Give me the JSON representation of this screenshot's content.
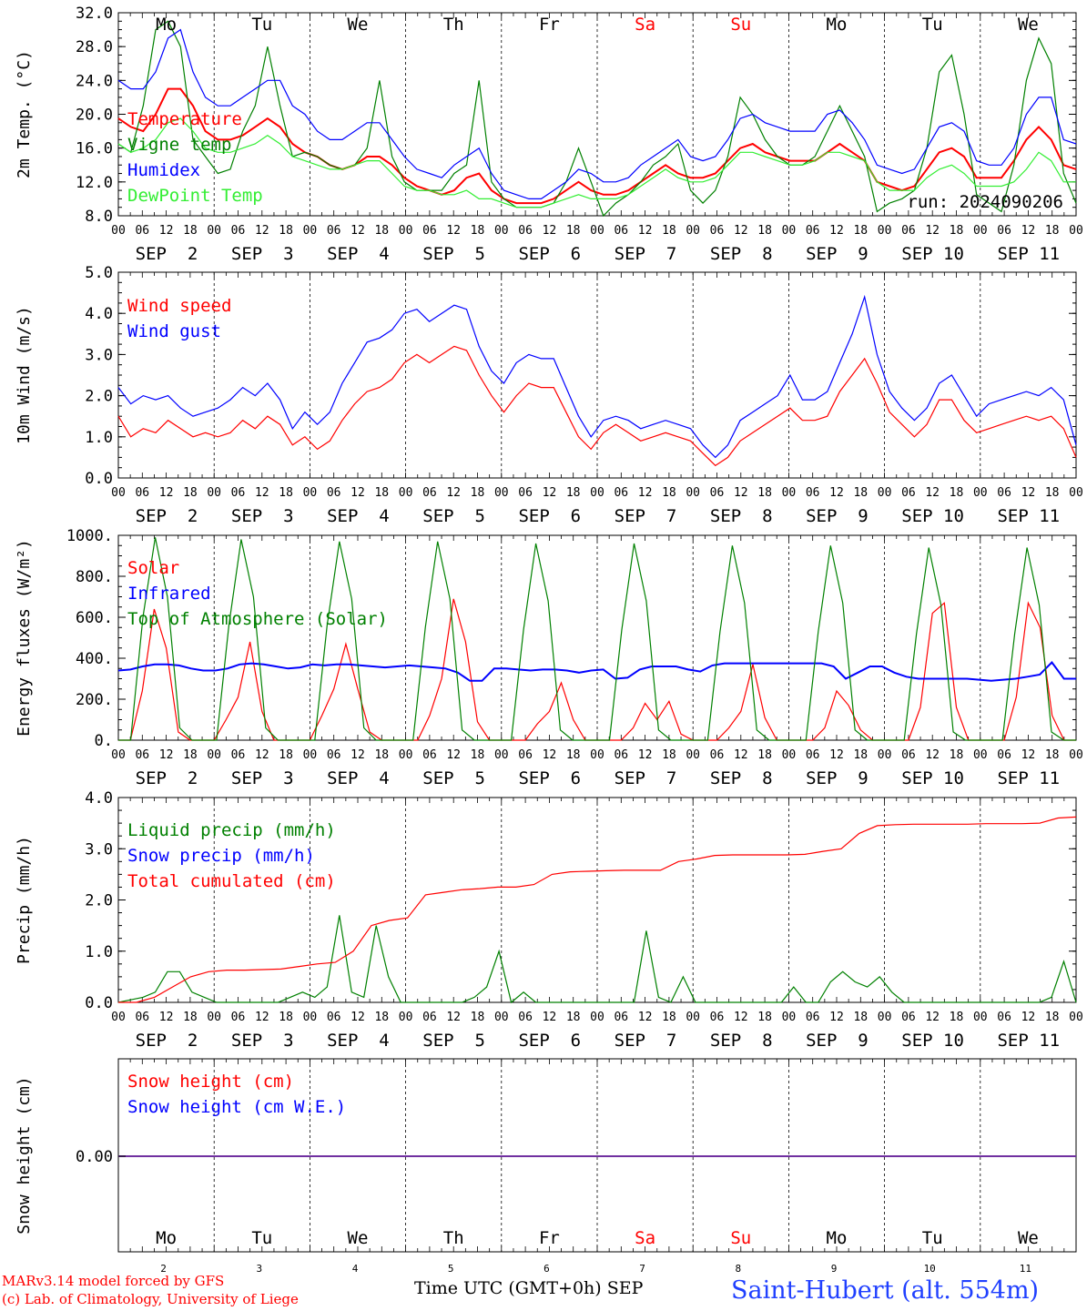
{
  "run_label": "run: 2024090206",
  "days": [
    "Mo",
    "Tu",
    "We",
    "Th",
    "Fr",
    "Sa",
    "Su",
    "Mo",
    "Tu",
    "We"
  ],
  "weekend_days": [
    "Sa",
    "Su"
  ],
  "date_labels": [
    "SEP  2",
    "SEP  3",
    "SEP  4",
    "SEP  5",
    "SEP  6",
    "SEP  7",
    "SEP  8",
    "SEP  9",
    "SEP 10",
    "SEP 11"
  ],
  "hour_ticks": [
    "00",
    "06",
    "12",
    "18"
  ],
  "bottom_day_numbers": [
    "2",
    "3",
    "4",
    "5",
    "6",
    "7",
    "8",
    "9",
    "10",
    "11"
  ],
  "x_axis_title": "Time UTC (GMT+0h)",
  "x_month": "SEP",
  "credit_line1": "MARv3.14 model forced by GFS",
  "credit_line2": "(c) Lab. of Climatology, University of Liege",
  "station": "Saint-Hubert (alt. 554m)",
  "colors": {
    "red": "#ff0000",
    "green": "#008000",
    "blue": "#0000ff",
    "lightgreen": "#33ee33",
    "purple": "#7030a0"
  },
  "chart_data": [
    {
      "type": "line",
      "ylabel": "2m Temp. (°C)",
      "ylim": [
        8,
        32
      ],
      "yticks": [
        "8.0",
        "12.0",
        "16.0",
        "20.0",
        "24.0",
        "28.0",
        "32.0"
      ],
      "x": "3-hourly from 2024-09-02 00 UTC",
      "series": [
        {
          "name": "Temperature",
          "color": "red",
          "values": [
            19.5,
            18.5,
            18,
            20,
            23,
            23,
            21,
            18,
            17,
            17,
            17.5,
            18.5,
            19.5,
            18.5,
            16.5,
            15.5,
            15,
            14,
            13.5,
            14,
            15,
            15,
            14,
            12.5,
            11.5,
            11,
            10.5,
            11,
            12.5,
            13,
            11,
            10,
            9.5,
            9.5,
            9.5,
            10,
            11,
            12,
            11,
            10.5,
            10.5,
            11,
            12,
            13,
            14,
            13,
            12.5,
            12.5,
            13,
            14.5,
            16,
            16.5,
            15.5,
            15,
            14.5,
            14.5,
            14.5,
            15.5,
            16.5,
            15.5,
            14.5,
            12,
            11.5,
            11,
            11.5,
            13.5,
            15.5,
            16,
            15,
            12.5,
            12.5,
            12.5,
            14.5,
            17,
            18.5,
            17,
            14,
            13.5
          ]
        },
        {
          "name": "Vigne temp",
          "color": "green",
          "values": [
            16.5,
            15.5,
            21,
            30,
            31,
            28,
            17,
            15,
            13,
            13.5,
            18,
            21,
            28,
            21,
            15,
            15.5,
            15,
            14,
            13.5,
            14,
            16,
            24,
            15,
            12,
            11,
            11,
            11,
            13,
            14,
            24,
            12,
            10,
            9,
            9,
            9,
            9.5,
            12,
            16,
            12,
            8,
            9.5,
            10.5,
            12,
            14,
            15,
            16.5,
            11,
            9.5,
            11,
            15,
            22,
            20,
            17,
            15,
            14,
            14,
            15,
            18,
            21,
            18,
            15,
            8.5,
            9.5,
            10,
            11,
            16,
            25,
            27,
            20,
            10.5,
            9.5,
            8.5,
            14,
            24,
            29,
            26,
            13,
            9.5
          ]
        },
        {
          "name": "Humidex",
          "color": "blue",
          "values": [
            24,
            23,
            23,
            25,
            29,
            30,
            25,
            22,
            21,
            21,
            22,
            23,
            24,
            24,
            21,
            20,
            18,
            17,
            17,
            18,
            19,
            19,
            17,
            15,
            13.5,
            13,
            12.5,
            14,
            15,
            16,
            13,
            11,
            10.5,
            10,
            10,
            11,
            12,
            13.5,
            13,
            12,
            12,
            12.5,
            14,
            15,
            16,
            17,
            15,
            14.5,
            15,
            17,
            19.5,
            20,
            19,
            18.5,
            18,
            18,
            18,
            20,
            20.5,
            19,
            17,
            14,
            13.5,
            13,
            13.5,
            16,
            18.5,
            19,
            18,
            14.5,
            14,
            14,
            16,
            20,
            22,
            22,
            17,
            16.5
          ]
        },
        {
          "name": "DewPoint Temp",
          "color": "lightgreen",
          "values": [
            16.5,
            15.5,
            16,
            17,
            19,
            19.5,
            18,
            16,
            15.5,
            15.5,
            16,
            16.5,
            17.5,
            16.5,
            15,
            14.5,
            14,
            13.5,
            13.5,
            14,
            14.5,
            14.5,
            13,
            11.5,
            11,
            11,
            10.5,
            10.5,
            11,
            10,
            10,
            9.5,
            9,
            9,
            9,
            9.5,
            10,
            10.5,
            10,
            10,
            10,
            10.5,
            11.5,
            12.5,
            13.5,
            12.5,
            12,
            12,
            12.5,
            14,
            15.5,
            15.5,
            15,
            14.5,
            14,
            14,
            14.5,
            15.5,
            15.5,
            15,
            14.5,
            12,
            11,
            11,
            11,
            12.5,
            13.5,
            14,
            13,
            11.5,
            11.5,
            11.5,
            12,
            13.5,
            15.5,
            14.5,
            12,
            12
          ]
        }
      ]
    },
    {
      "type": "line",
      "ylabel": "10m Wind (m/s)",
      "ylim": [
        0,
        5
      ],
      "yticks": [
        "0.0",
        "1.0",
        "2.0",
        "3.0",
        "4.0",
        "5.0"
      ],
      "series": [
        {
          "name": "Wind speed",
          "color": "red",
          "values": [
            1.5,
            1,
            1.2,
            1.1,
            1.4,
            1.2,
            1,
            1.1,
            1,
            1.1,
            1.4,
            1.2,
            1.5,
            1.3,
            0.8,
            1,
            0.7,
            0.9,
            1.4,
            1.8,
            2.1,
            2.2,
            2.4,
            2.8,
            3.0,
            2.8,
            3.0,
            3.2,
            3.1,
            2.5,
            2.0,
            1.6,
            2.0,
            2.3,
            2.2,
            2.2,
            1.6,
            1.0,
            0.7,
            1.1,
            1.3,
            1.1,
            0.9,
            1.0,
            1.1,
            1.0,
            0.9,
            0.6,
            0.3,
            0.5,
            0.9,
            1.1,
            1.3,
            1.5,
            1.7,
            1.4,
            1.4,
            1.5,
            2.1,
            2.5,
            2.9,
            2.3,
            1.6,
            1.3,
            1.0,
            1.3,
            1.9,
            1.9,
            1.4,
            1.1,
            1.2,
            1.3,
            1.4,
            1.5,
            1.4,
            1.5,
            1.2,
            0.5
          ]
        },
        {
          "name": "Wind gust",
          "color": "blue",
          "values": [
            2.2,
            1.8,
            2.0,
            1.9,
            2.0,
            1.7,
            1.5,
            1.6,
            1.7,
            1.9,
            2.2,
            2.0,
            2.3,
            1.9,
            1.2,
            1.6,
            1.3,
            1.6,
            2.3,
            2.8,
            3.3,
            3.4,
            3.6,
            4.0,
            4.1,
            3.8,
            4.0,
            4.2,
            4.1,
            3.2,
            2.6,
            2.3,
            2.8,
            3.0,
            2.9,
            2.9,
            2.2,
            1.5,
            1.0,
            1.4,
            1.5,
            1.4,
            1.2,
            1.3,
            1.4,
            1.3,
            1.2,
            0.8,
            0.5,
            0.8,
            1.4,
            1.6,
            1.8,
            2.0,
            2.5,
            1.9,
            1.9,
            2.1,
            2.8,
            3.5,
            4.4,
            3.0,
            2.1,
            1.7,
            1.4,
            1.7,
            2.3,
            2.5,
            2.0,
            1.5,
            1.8,
            1.9,
            2.0,
            2.1,
            2.0,
            2.2,
            1.9,
            0.8
          ]
        }
      ]
    },
    {
      "type": "line",
      "ylabel": "Energy fluxes (W/m²)",
      "ylim": [
        0,
        1000
      ],
      "yticks": [
        "0.",
        "200.",
        "400.",
        "600.",
        "800.",
        "1000."
      ],
      "series": [
        {
          "name": "Solar",
          "color": "red",
          "values": [
            0,
            0,
            240,
            640,
            450,
            40,
            0,
            0,
            0,
            100,
            210,
            480,
            140,
            0,
            0,
            0,
            0,
            120,
            250,
            470,
            250,
            40,
            0,
            0,
            0,
            0,
            120,
            300,
            690,
            480,
            90,
            0,
            0,
            0,
            0,
            80,
            140,
            280,
            100,
            0,
            0,
            0,
            0,
            60,
            180,
            100,
            190,
            30,
            0,
            0,
            0,
            60,
            140,
            370,
            110,
            0,
            0,
            0,
            0,
            60,
            240,
            170,
            50,
            0,
            0,
            0,
            0,
            160,
            620,
            670,
            160,
            0,
            0,
            0,
            0,
            210,
            670,
            550,
            120,
            0,
            0
          ]
        },
        {
          "name": "Infrared",
          "color": "blue",
          "values": [
            340,
            345,
            360,
            370,
            370,
            365,
            350,
            340,
            340,
            350,
            370,
            375,
            370,
            360,
            350,
            355,
            370,
            365,
            370,
            370,
            365,
            360,
            355,
            360,
            365,
            360,
            355,
            350,
            330,
            290,
            290,
            350,
            350,
            345,
            340,
            345,
            345,
            340,
            330,
            340,
            345,
            300,
            305,
            345,
            360,
            360,
            360,
            345,
            335,
            365,
            375,
            375,
            375,
            375,
            375,
            375,
            375,
            375,
            375,
            360,
            300,
            330,
            360,
            360,
            330,
            310,
            300,
            300,
            300,
            300,
            300,
            295,
            290,
            295,
            300,
            310,
            320,
            380,
            300,
            300
          ]
        },
        {
          "name": "Top of Atmosphere (Solar)",
          "color": "green",
          "values": [
            0,
            0,
            600,
            990,
            700,
            60,
            0,
            0,
            0,
            560,
            980,
            700,
            60,
            0,
            0,
            0,
            0,
            560,
            970,
            690,
            60,
            0,
            0,
            0,
            0,
            550,
            970,
            690,
            50,
            0,
            0,
            0,
            0,
            540,
            960,
            680,
            50,
            0,
            0,
            0,
            0,
            540,
            960,
            680,
            50,
            0,
            0,
            0,
            0,
            530,
            950,
            670,
            50,
            0,
            0,
            0,
            0,
            530,
            950,
            670,
            50,
            0,
            0,
            0,
            0,
            520,
            940,
            660,
            40,
            0,
            0,
            0,
            0,
            520,
            940,
            660,
            40,
            0,
            0
          ]
        }
      ]
    },
    {
      "type": "line",
      "ylabel": "Precip (mm/h)",
      "ylim": [
        0,
        4
      ],
      "yticks": [
        "0.0",
        "1.0",
        "2.0",
        "3.0",
        "4.0"
      ],
      "series": [
        {
          "name": "Liquid precip (mm/h)",
          "color": "green",
          "values": [
            0,
            0.05,
            0.1,
            0.2,
            0.6,
            0.6,
            0.2,
            0.1,
            0,
            0,
            0,
            0,
            0,
            0,
            0.1,
            0.2,
            0.1,
            0.3,
            1.7,
            0.2,
            0.1,
            1.5,
            0.5,
            0,
            0,
            0,
            0,
            0,
            0,
            0.1,
            0.3,
            1.0,
            0,
            0.2,
            0,
            0,
            0,
            0,
            0,
            0,
            0,
            0,
            0,
            1.4,
            0.1,
            0,
            0.5,
            0,
            0,
            0,
            0,
            0,
            0,
            0,
            0,
            0.3,
            0,
            0,
            0.4,
            0.6,
            0.4,
            0.3,
            0.5,
            0.2,
            0,
            0,
            0,
            0,
            0,
            0,
            0,
            0,
            0,
            0,
            0,
            0,
            0.1,
            0.8,
            0
          ]
        },
        {
          "name": "Snow precip (mm/h)",
          "color": "blue",
          "values": []
        },
        {
          "name": "Total cumulated (cm)",
          "color": "red",
          "values": [
            0,
            0,
            0.1,
            0.3,
            0.5,
            0.6,
            0.63,
            0.63,
            0.64,
            0.65,
            0.7,
            0.75,
            0.78,
            1.0,
            1.5,
            1.6,
            1.65,
            2.1,
            2.15,
            2.2,
            2.22,
            2.25,
            2.25,
            2.3,
            2.5,
            2.55,
            2.56,
            2.57,
            2.58,
            2.58,
            2.58,
            2.75,
            2.8,
            2.87,
            2.88,
            2.88,
            2.88,
            2.88,
            2.89,
            2.95,
            3.0,
            3.3,
            3.45,
            3.47,
            3.48,
            3.48,
            3.48,
            3.48,
            3.49,
            3.49,
            3.49,
            3.5,
            3.6,
            3.62
          ]
        }
      ]
    },
    {
      "type": "line",
      "ylabel": "Snow height (cm)",
      "yticks": [
        "0.00"
      ],
      "series": [
        {
          "name": "Snow height (cm)",
          "color": "red",
          "values": [
            0,
            0
          ]
        },
        {
          "name": "Snow height (cm W.E.)",
          "color": "blue",
          "values": [
            0,
            0
          ]
        }
      ]
    }
  ]
}
